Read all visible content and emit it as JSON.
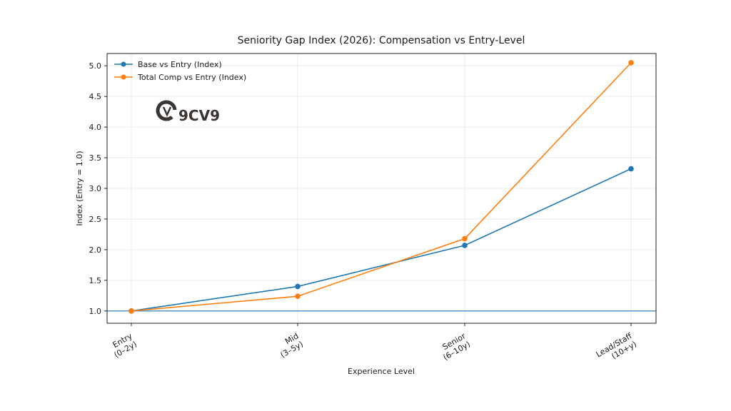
{
  "chart_data": {
    "type": "line",
    "title": "Seniority Gap Index (2026): Compensation vs Entry-Level",
    "xlabel": "Experience Level",
    "ylabel": "Index (Entry = 1.0)",
    "categories": [
      [
        "Entry",
        "(0–2y)"
      ],
      [
        "Mid",
        "(3–5y)"
      ],
      [
        "Senior",
        "(6–10y)"
      ],
      [
        "Lead/Staff",
        "(10+y)"
      ]
    ],
    "ylim": [
      0.8,
      5.2
    ],
    "yticks": [
      "1.0",
      "1.5",
      "2.0",
      "2.5",
      "3.0",
      "3.5",
      "4.0",
      "4.5",
      "5.0"
    ],
    "grid": true,
    "legend_position": "top-left",
    "reference_line": {
      "y": 1.0,
      "color": "#1f77b4"
    },
    "series": [
      {
        "name": "Base vs Entry (Index)",
        "color": "#1f77b4",
        "values": [
          1.0,
          1.4,
          2.07,
          3.32
        ]
      },
      {
        "name": "Total Comp vs Entry (Index)",
        "color": "#ff7f0e",
        "values": [
          1.0,
          1.24,
          2.18,
          5.05
        ]
      }
    ]
  },
  "watermark": {
    "text": "9CV9",
    "icon": "9cv9-logo-mark"
  }
}
